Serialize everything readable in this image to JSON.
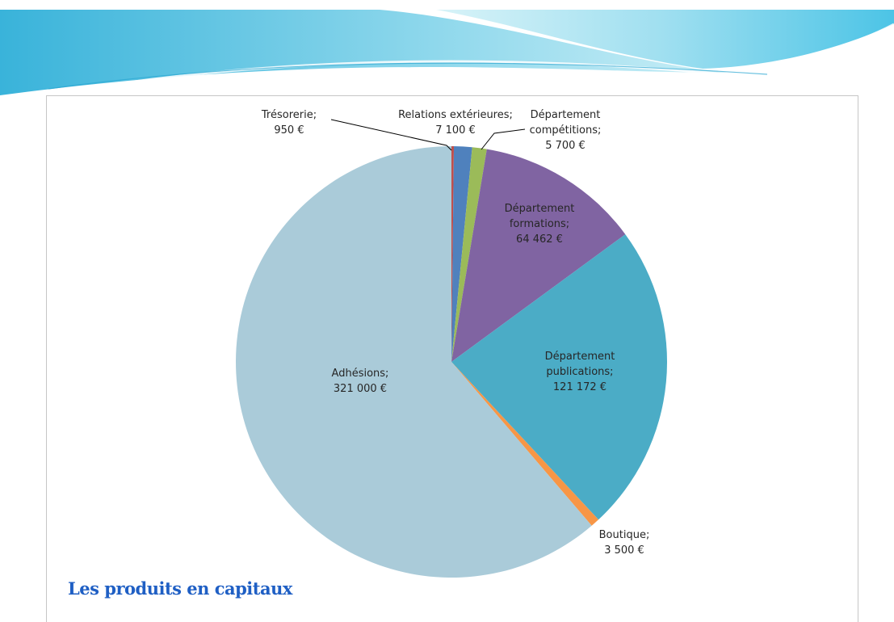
{
  "slide": {
    "title": "Les produits en capitaux"
  },
  "chart_data": {
    "type": "pie",
    "title": "",
    "start_angle_deg": 0,
    "direction": "clockwise",
    "slices": [
      {
        "key": "tresorerie",
        "label_lines": [
          "Trésorerie;",
          "950 €"
        ],
        "value": 950,
        "color": "#c0504d"
      },
      {
        "key": "relations",
        "label_lines": [
          "Relations extérieures;",
          "7 100 €"
        ],
        "value": 7100,
        "color": "#4f81bd"
      },
      {
        "key": "competitions",
        "label_lines": [
          "Département",
          "compétitions;",
          "5 700 €"
        ],
        "value": 5700,
        "color": "#9bbb59"
      },
      {
        "key": "formations",
        "label_lines": [
          "Département",
          "formations;",
          "64 462 €"
        ],
        "value": 64462,
        "color": "#8064a2"
      },
      {
        "key": "publications",
        "label_lines": [
          "Département",
          "publications;",
          "121 172 €"
        ],
        "value": 121172,
        "color": "#4bacc6"
      },
      {
        "key": "boutique",
        "label_lines": [
          "Boutique;",
          "3 500 €"
        ],
        "value": 3500,
        "color": "#f79646"
      },
      {
        "key": "adhesions",
        "label_lines": [
          "Adhésions;",
          "321 000 €"
        ],
        "value": 321000,
        "color": "#aacbd9"
      }
    ]
  }
}
